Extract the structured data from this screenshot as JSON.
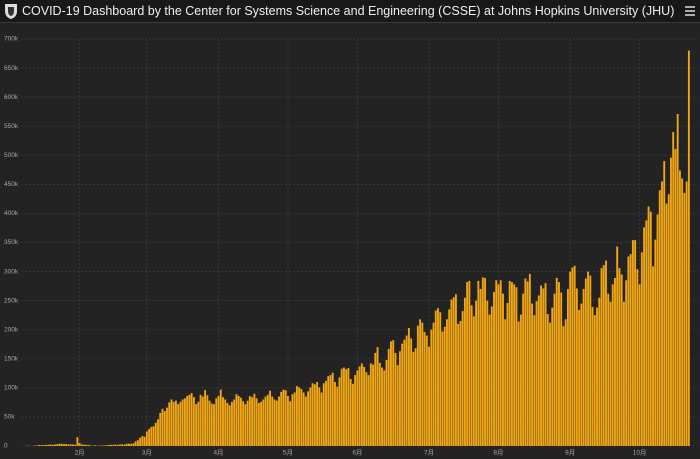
{
  "header": {
    "title": "COVID-19 Dashboard by the Center for Systems Science and Engineering (CSSE) at Johns Hopkins University (JHU)"
  },
  "chart_data": {
    "type": "bar",
    "color": "#f2a711",
    "grid": true,
    "ylim": [
      0,
      700000
    ],
    "yticks": [
      0,
      {
        "value": 50000,
        "label": "50k"
      },
      {
        "value": 100000,
        "label": "100k"
      },
      {
        "value": 150000,
        "label": "150k"
      },
      {
        "value": 200000,
        "label": "200k"
      },
      {
        "value": 250000,
        "label": "250k"
      },
      {
        "value": 300000,
        "label": "300k"
      },
      {
        "value": 350000,
        "label": "350k"
      },
      {
        "value": 400000,
        "label": "400k"
      },
      {
        "value": 450000,
        "label": "450k"
      },
      {
        "value": 500000,
        "label": "500k"
      },
      {
        "value": 550000,
        "label": "550k"
      },
      {
        "value": 600000,
        "label": "600k"
      },
      {
        "value": 650000,
        "label": "650k"
      },
      {
        "value": 700000,
        "label": "700k"
      }
    ],
    "categories": [
      null,
      null,
      null,
      null,
      null,
      null,
      null,
      null,
      null,
      null,
      null,
      null,
      null,
      null,
      null,
      null,
      null,
      null,
      null,
      null,
      null,
      null,
      null,
      "2月",
      null,
      null,
      null,
      null,
      null,
      null,
      null,
      null,
      null,
      null,
      null,
      null,
      null,
      null,
      null,
      null,
      null,
      null,
      null,
      null,
      null,
      null,
      null,
      null,
      null,
      null,
      null,
      null,
      null,
      "3月",
      null,
      null,
      null,
      null,
      null,
      null,
      null,
      null,
      null,
      null,
      null,
      null,
      null,
      null,
      null,
      null,
      null,
      null,
      null,
      null,
      null,
      null,
      null,
      null,
      null,
      null,
      null,
      null,
      null,
      null,
      null,
      "4月",
      null,
      null,
      null,
      null,
      null,
      null,
      null,
      null,
      null,
      null,
      null,
      null,
      null,
      null,
      null,
      null,
      null,
      null,
      null,
      null,
      null,
      null,
      null,
      null,
      null,
      null,
      null,
      null,
      null,
      null,
      "5月",
      null,
      null,
      null,
      null,
      null,
      null,
      null,
      null,
      null,
      null,
      null,
      null,
      null,
      null,
      null,
      null,
      null,
      null,
      null,
      null,
      null,
      null,
      null,
      null,
      null,
      null,
      null,
      null,
      null,
      null,
      "6月",
      null,
      null,
      null,
      null,
      null,
      null,
      null,
      null,
      null,
      null,
      null,
      null,
      null,
      null,
      null,
      null,
      null,
      null,
      null,
      null,
      null,
      null,
      null,
      null,
      null,
      null,
      null,
      null,
      null,
      null,
      null,
      "7月",
      null,
      null,
      null,
      null,
      null,
      null,
      null,
      null,
      null,
      null,
      null,
      null,
      null,
      null,
      null,
      null,
      null,
      null,
      null,
      null,
      null,
      null,
      null,
      null,
      null,
      null,
      null,
      null,
      null,
      null,
      "8月",
      null,
      null,
      null,
      null,
      null,
      null,
      null,
      null,
      null,
      null,
      null,
      null,
      null,
      null,
      null,
      null,
      null,
      null,
      null,
      null,
      null,
      null,
      null,
      null,
      null,
      null,
      null,
      null,
      null,
      null,
      null,
      "9月",
      null,
      null,
      null,
      null,
      null,
      null,
      null,
      null,
      null,
      null,
      null,
      null,
      null,
      null,
      null,
      null,
      null,
      null,
      null,
      null,
      null,
      null,
      null,
      null,
      null,
      null,
      null,
      null,
      null,
      null,
      "10月",
      null,
      null,
      null,
      null,
      null,
      null,
      null,
      null,
      null,
      null,
      null,
      null,
      null,
      null,
      null,
      null,
      null,
      null,
      null,
      null,
      null,
      null
    ],
    "values": [
      600,
      100,
      300,
      700,
      800,
      1800,
      1500,
      1700,
      1900,
      2100,
      2600,
      2100,
      2600,
      3200,
      3900,
      3700,
      3200,
      3400,
      2700,
      3000,
      2600,
      2000,
      15200,
      5100,
      2700,
      2200,
      2000,
      1900,
      700,
      600,
      1100,
      500,
      600,
      900,
      900,
      1400,
      1800,
      2000,
      2000,
      2400,
      2000,
      2600,
      3000,
      2400,
      3900,
      4000,
      3700,
      4700,
      8000,
      10000,
      14000,
      17000,
      16000,
      25000,
      29000,
      33000,
      34000,
      40000,
      46000,
      57000,
      64000,
      60000,
      66000,
      75000,
      80000,
      76000,
      78000,
      72000,
      76000,
      80000,
      82000,
      86000,
      88000,
      91000,
      84000,
      72000,
      76000,
      88000,
      85000,
      96000,
      87000,
      78000,
      73000,
      72000,
      82000,
      86000,
      97000,
      84000,
      80000,
      74000,
      70000,
      76000,
      80000,
      89000,
      86000,
      83000,
      77000,
      72000,
      78000,
      86000,
      84000,
      90000,
      82000,
      74000,
      76000,
      80000,
      85000,
      88000,
      95000,
      85000,
      80000,
      78000,
      85000,
      93000,
      97000,
      96000,
      86000,
      77000,
      89000,
      92000,
      103000,
      101000,
      98000,
      92000,
      85000,
      94000,
      101000,
      108000,
      106000,
      110000,
      101000,
      92000,
      108000,
      112000,
      120000,
      122000,
      126000,
      110000,
      102000,
      118000,
      133000,
      135000,
      132000,
      134000,
      115000,
      107000,
      122000,
      130000,
      137000,
      142000,
      136000,
      127000,
      122000,
      142000,
      140000,
      160000,
      170000,
      143000,
      135000,
      130000,
      148000,
      167000,
      180000,
      182000,
      160000,
      139000,
      163000,
      176000,
      183000,
      190000,
      203000,
      185000,
      162000,
      168000,
      207000,
      218000,
      212000,
      196000,
      190000,
      171000,
      200000,
      212000,
      233000,
      237000,
      230000,
      197000,
      205000,
      218000,
      235000,
      252000,
      256000,
      261000,
      210000,
      215000,
      232000,
      255000,
      282000,
      284000,
      242000,
      223000,
      250000,
      284000,
      270000,
      290000,
      289000,
      250000,
      226000,
      240000,
      265000,
      285000,
      278000,
      285000,
      262000,
      218000,
      246000,
      284000,
      282000,
      278000,
      273000,
      214000,
      226000,
      262000,
      288000,
      283000,
      296000,
      245000,
      225000,
      249000,
      259000,
      276000,
      271000,
      280000,
      227000,
      212000,
      238000,
      262000,
      289000,
      282000,
      264000,
      206000,
      218000,
      270000,
      300000,
      307000,
      310000,
      271000,
      234000,
      245000,
      270000,
      288000,
      300000,
      293000,
      239000,
      225000,
      238000,
      255000,
      306000,
      311000,
      319000,
      262000,
      248000,
      278000,
      289000,
      343000,
      306000,
      295000,
      248000,
      285000,
      326000,
      330000,
      354000,
      354000,
      304000,
      278000,
      333000,
      376000,
      388000,
      412000,
      403000,
      309000,
      355000,
      398000,
      440000,
      455000,
      490000,
      417000,
      433000,
      496000,
      540000,
      511000,
      571000,
      474000,
      460000,
      435000,
      455000,
      680000
    ]
  }
}
